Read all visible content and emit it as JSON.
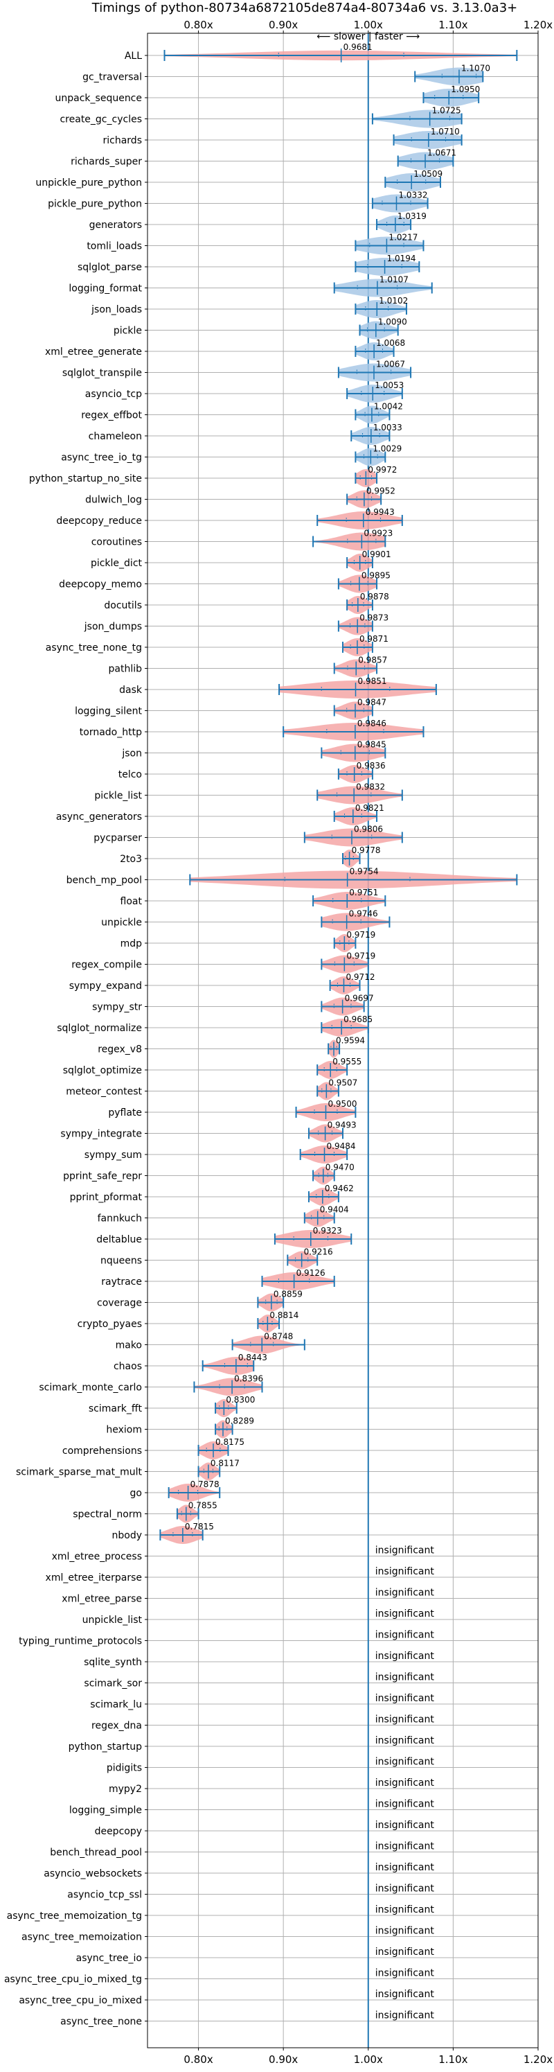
{
  "chart_data": {
    "type": "violin",
    "title": "Timings of python-80734a6872105de874a4-80734a6 vs. 3.13.0a3+",
    "direction_label": "⟵ slower  |  faster ⟶",
    "xlim": [
      0.74,
      1.2
    ],
    "x_ticks": [
      {
        "value": 0.8,
        "label": "0.80x"
      },
      {
        "value": 0.9,
        "label": "0.90x"
      },
      {
        "value": 1.0,
        "label": "1.00x"
      },
      {
        "value": 1.1,
        "label": "1.10x"
      },
      {
        "value": 1.2,
        "label": "1.20x"
      }
    ],
    "faster_color": "#a8c8e6",
    "slower_color": "#f4a6a6",
    "line_color": "#1f77b4",
    "insignificant_label": "insignificant",
    "benchmarks": [
      {
        "name": "ALL",
        "value": 0.9681,
        "label": "0.9681",
        "min": 0.76,
        "max": 1.175,
        "spread": 0.11,
        "width": 0.55
      },
      {
        "name": "gc_traversal",
        "value": 1.107,
        "label": "1.1070",
        "min": 1.055,
        "max": 1.135,
        "spread": 0.03
      },
      {
        "name": "unpack_sequence",
        "value": 1.095,
        "label": "1.0950",
        "min": 1.065,
        "max": 1.13,
        "spread": 0.025
      },
      {
        "name": "create_gc_cycles",
        "value": 1.0725,
        "label": "1.0725",
        "min": 1.005,
        "max": 1.11,
        "spread": 0.035
      },
      {
        "name": "richards",
        "value": 1.071,
        "label": "1.0710",
        "min": 1.03,
        "max": 1.11,
        "spread": 0.03
      },
      {
        "name": "richards_super",
        "value": 1.0671,
        "label": "1.0671",
        "min": 1.035,
        "max": 1.1,
        "spread": 0.025
      },
      {
        "name": "unpickle_pure_python",
        "value": 1.0509,
        "label": "1.0509",
        "min": 1.02,
        "max": 1.085,
        "spread": 0.025
      },
      {
        "name": "pickle_pure_python",
        "value": 1.0332,
        "label": "1.0332",
        "min": 1.005,
        "max": 1.07,
        "spread": 0.025
      },
      {
        "name": "generators",
        "value": 1.0319,
        "label": "1.0319",
        "min": 1.01,
        "max": 1.05,
        "spread": 0.015
      },
      {
        "name": "tomli_loads",
        "value": 1.0217,
        "label": "1.0217",
        "min": 0.985,
        "max": 1.065,
        "spread": 0.03
      },
      {
        "name": "sqlglot_parse",
        "value": 1.0194,
        "label": "1.0194",
        "min": 0.985,
        "max": 1.06,
        "spread": 0.03
      },
      {
        "name": "logging_format",
        "value": 1.0107,
        "label": "1.0107",
        "min": 0.96,
        "max": 1.075,
        "spread": 0.035
      },
      {
        "name": "json_loads",
        "value": 1.0102,
        "label": "1.0102",
        "min": 0.985,
        "max": 1.045,
        "spread": 0.02
      },
      {
        "name": "pickle",
        "value": 1.009,
        "label": "1.0090",
        "min": 0.99,
        "max": 1.035,
        "spread": 0.015
      },
      {
        "name": "xml_etree_generate",
        "value": 1.0068,
        "label": "1.0068",
        "min": 0.985,
        "max": 1.03,
        "spread": 0.015
      },
      {
        "name": "sqlglot_transpile",
        "value": 1.0067,
        "label": "1.0067",
        "min": 0.965,
        "max": 1.05,
        "spread": 0.03
      },
      {
        "name": "asyncio_tcp",
        "value": 1.0053,
        "label": "1.0053",
        "min": 0.975,
        "max": 1.04,
        "spread": 0.02
      },
      {
        "name": "regex_effbot",
        "value": 1.0042,
        "label": "1.0042",
        "min": 0.985,
        "max": 1.025,
        "spread": 0.012
      },
      {
        "name": "chameleon",
        "value": 1.0033,
        "label": "1.0033",
        "min": 0.98,
        "max": 1.025,
        "spread": 0.015
      },
      {
        "name": "async_tree_io_tg",
        "value": 1.0029,
        "label": "1.0029",
        "min": 0.985,
        "max": 1.02,
        "spread": 0.012
      },
      {
        "name": "python_startup_no_site",
        "value": 0.9972,
        "label": "0.9972",
        "min": 0.985,
        "max": 1.01,
        "spread": 0.01
      },
      {
        "name": "dulwich_log",
        "value": 0.9952,
        "label": "0.9952",
        "min": 0.975,
        "max": 1.015,
        "spread": 0.013
      },
      {
        "name": "deepcopy_reduce",
        "value": 0.9943,
        "label": "0.9943",
        "min": 0.94,
        "max": 1.04,
        "spread": 0.03
      },
      {
        "name": "coroutines",
        "value": 0.9923,
        "label": "0.9923",
        "min": 0.935,
        "max": 1.02,
        "spread": 0.025
      },
      {
        "name": "pickle_dict",
        "value": 0.9901,
        "label": "0.9901",
        "min": 0.975,
        "max": 1.005,
        "spread": 0.01
      },
      {
        "name": "deepcopy_memo",
        "value": 0.9895,
        "label": "0.9895",
        "min": 0.965,
        "max": 1.01,
        "spread": 0.015
      },
      {
        "name": "docutils",
        "value": 0.9878,
        "label": "0.9878",
        "min": 0.975,
        "max": 1.005,
        "spread": 0.01
      },
      {
        "name": "json_dumps",
        "value": 0.9873,
        "label": "0.9873",
        "min": 0.965,
        "max": 1.005,
        "spread": 0.013
      },
      {
        "name": "async_tree_none_tg",
        "value": 0.9871,
        "label": "0.9871",
        "min": 0.97,
        "max": 1.005,
        "spread": 0.012
      },
      {
        "name": "pathlib",
        "value": 0.9857,
        "label": "0.9857",
        "min": 0.96,
        "max": 1.01,
        "spread": 0.015
      },
      {
        "name": "dask",
        "value": 0.9851,
        "label": "0.9851",
        "min": 0.895,
        "max": 1.08,
        "spread": 0.06
      },
      {
        "name": "logging_silent",
        "value": 0.9847,
        "label": "0.9847",
        "min": 0.96,
        "max": 1.005,
        "spread": 0.015
      },
      {
        "name": "tornado_http",
        "value": 0.9846,
        "label": "0.9846",
        "min": 0.9,
        "max": 1.065,
        "spread": 0.05
      },
      {
        "name": "json",
        "value": 0.9845,
        "label": "0.9845",
        "min": 0.945,
        "max": 1.02,
        "spread": 0.025
      },
      {
        "name": "telco",
        "value": 0.9836,
        "label": "0.9836",
        "min": 0.965,
        "max": 1.005,
        "spread": 0.013
      },
      {
        "name": "pickle_list",
        "value": 0.9832,
        "label": "0.9832",
        "min": 0.94,
        "max": 1.04,
        "spread": 0.03
      },
      {
        "name": "async_generators",
        "value": 0.9821,
        "label": "0.9821",
        "min": 0.96,
        "max": 1.01,
        "spread": 0.015
      },
      {
        "name": "pycparser",
        "value": 0.9806,
        "label": "0.9806",
        "min": 0.925,
        "max": 1.04,
        "spread": 0.035
      },
      {
        "name": "2to3",
        "value": 0.9778,
        "label": "0.9778",
        "min": 0.97,
        "max": 0.99,
        "spread": 0.007
      },
      {
        "name": "bench_mp_pool",
        "value": 0.9754,
        "label": "0.9754",
        "min": 0.79,
        "max": 1.175,
        "spread": 0.11
      },
      {
        "name": "float",
        "value": 0.9751,
        "label": "0.9751",
        "min": 0.935,
        "max": 1.02,
        "spread": 0.025
      },
      {
        "name": "unpickle",
        "value": 0.9746,
        "label": "0.9746",
        "min": 0.945,
        "max": 1.025,
        "spread": 0.025
      },
      {
        "name": "mdp",
        "value": 0.9719,
        "label": "0.9719",
        "min": 0.96,
        "max": 0.985,
        "spread": 0.008
      },
      {
        "name": "regex_compile",
        "value": 0.9719,
        "label": "0.9719",
        "min": 0.945,
        "max": 1.0,
        "spread": 0.017
      },
      {
        "name": "sympy_expand",
        "value": 0.9712,
        "label": "0.9712",
        "min": 0.955,
        "max": 0.99,
        "spread": 0.011
      },
      {
        "name": "sympy_str",
        "value": 0.9697,
        "label": "0.9697",
        "min": 0.945,
        "max": 0.995,
        "spread": 0.015
      },
      {
        "name": "sqlglot_normalize",
        "value": 0.9685,
        "label": "0.9685",
        "min": 0.945,
        "max": 1.0,
        "spread": 0.017
      },
      {
        "name": "regex_v8",
        "value": 0.9594,
        "label": "0.9594",
        "min": 0.953,
        "max": 0.966,
        "spread": 0.005
      },
      {
        "name": "sqlglot_optimize",
        "value": 0.9555,
        "label": "0.9555",
        "min": 0.94,
        "max": 0.975,
        "spread": 0.011
      },
      {
        "name": "meteor_contest",
        "value": 0.9507,
        "label": "0.9507",
        "min": 0.94,
        "max": 0.965,
        "spread": 0.008
      },
      {
        "name": "pyflate",
        "value": 0.95,
        "label": "0.9500",
        "min": 0.915,
        "max": 0.985,
        "spread": 0.02
      },
      {
        "name": "sympy_integrate",
        "value": 0.9493,
        "label": "0.9493",
        "min": 0.93,
        "max": 0.97,
        "spread": 0.012
      },
      {
        "name": "sympy_sum",
        "value": 0.9484,
        "label": "0.9484",
        "min": 0.92,
        "max": 0.975,
        "spread": 0.017
      },
      {
        "name": "pprint_safe_repr",
        "value": 0.947,
        "label": "0.9470",
        "min": 0.935,
        "max": 0.96,
        "spread": 0.008
      },
      {
        "name": "pprint_pformat",
        "value": 0.9462,
        "label": "0.9462",
        "min": 0.93,
        "max": 0.965,
        "spread": 0.011
      },
      {
        "name": "fannkuch",
        "value": 0.9404,
        "label": "0.9404",
        "min": 0.925,
        "max": 0.96,
        "spread": 0.011
      },
      {
        "name": "deltablue",
        "value": 0.9323,
        "label": "0.9323",
        "min": 0.89,
        "max": 0.98,
        "spread": 0.03
      },
      {
        "name": "nqueens",
        "value": 0.9216,
        "label": "0.9216",
        "min": 0.905,
        "max": 0.94,
        "spread": 0.011
      },
      {
        "name": "raytrace",
        "value": 0.9126,
        "label": "0.9126",
        "min": 0.875,
        "max": 0.96,
        "spread": 0.027
      },
      {
        "name": "coverage",
        "value": 0.8859,
        "label": "0.8859",
        "min": 0.87,
        "max": 0.9,
        "spread": 0.01
      },
      {
        "name": "crypto_pyaes",
        "value": 0.8814,
        "label": "0.8814",
        "min": 0.87,
        "max": 0.895,
        "spread": 0.008
      },
      {
        "name": "mako",
        "value": 0.8748,
        "label": "0.8748",
        "min": 0.84,
        "max": 0.925,
        "spread": 0.02
      },
      {
        "name": "chaos",
        "value": 0.8443,
        "label": "0.8443",
        "min": 0.805,
        "max": 0.865,
        "spread": 0.02
      },
      {
        "name": "scimark_monte_carlo",
        "value": 0.8396,
        "label": "0.8396",
        "min": 0.795,
        "max": 0.875,
        "spread": 0.022
      },
      {
        "name": "scimark_fft",
        "value": 0.83,
        "label": "0.8300",
        "min": 0.82,
        "max": 0.845,
        "spread": 0.008
      },
      {
        "name": "hexiom",
        "value": 0.8289,
        "label": "0.8289",
        "min": 0.82,
        "max": 0.84,
        "spread": 0.007
      },
      {
        "name": "comprehensions",
        "value": 0.8175,
        "label": "0.8175",
        "min": 0.8,
        "max": 0.835,
        "spread": 0.012
      },
      {
        "name": "scimark_sparse_mat_mult",
        "value": 0.8117,
        "label": "0.8117",
        "min": 0.8,
        "max": 0.825,
        "spread": 0.008
      },
      {
        "name": "go",
        "value": 0.7878,
        "label": "0.7878",
        "min": 0.765,
        "max": 0.825,
        "spread": 0.017
      },
      {
        "name": "spectral_norm",
        "value": 0.7855,
        "label": "0.7855",
        "min": 0.775,
        "max": 0.8,
        "spread": 0.008
      },
      {
        "name": "nbody",
        "value": 0.7815,
        "label": "0.7815",
        "min": 0.755,
        "max": 0.805,
        "spread": 0.017
      },
      {
        "name": "xml_etree_process",
        "insignificant": true
      },
      {
        "name": "xml_etree_iterparse",
        "insignificant": true
      },
      {
        "name": "xml_etree_parse",
        "insignificant": true
      },
      {
        "name": "unpickle_list",
        "insignificant": true
      },
      {
        "name": "typing_runtime_protocols",
        "insignificant": true
      },
      {
        "name": "sqlite_synth",
        "insignificant": true
      },
      {
        "name": "scimark_sor",
        "insignificant": true
      },
      {
        "name": "scimark_lu",
        "insignificant": true
      },
      {
        "name": "regex_dna",
        "insignificant": true
      },
      {
        "name": "python_startup",
        "insignificant": true
      },
      {
        "name": "pidigits",
        "insignificant": true
      },
      {
        "name": "mypy2",
        "insignificant": true
      },
      {
        "name": "logging_simple",
        "insignificant": true
      },
      {
        "name": "deepcopy",
        "insignificant": true
      },
      {
        "name": "bench_thread_pool",
        "insignificant": true
      },
      {
        "name": "asyncio_websockets",
        "insignificant": true
      },
      {
        "name": "asyncio_tcp_ssl",
        "insignificant": true
      },
      {
        "name": "async_tree_memoization_tg",
        "insignificant": true
      },
      {
        "name": "async_tree_memoization",
        "insignificant": true
      },
      {
        "name": "async_tree_io",
        "insignificant": true
      },
      {
        "name": "async_tree_cpu_io_mixed_tg",
        "insignificant": true
      },
      {
        "name": "async_tree_cpu_io_mixed",
        "insignificant": true
      },
      {
        "name": "async_tree_none",
        "insignificant": true
      }
    ]
  }
}
